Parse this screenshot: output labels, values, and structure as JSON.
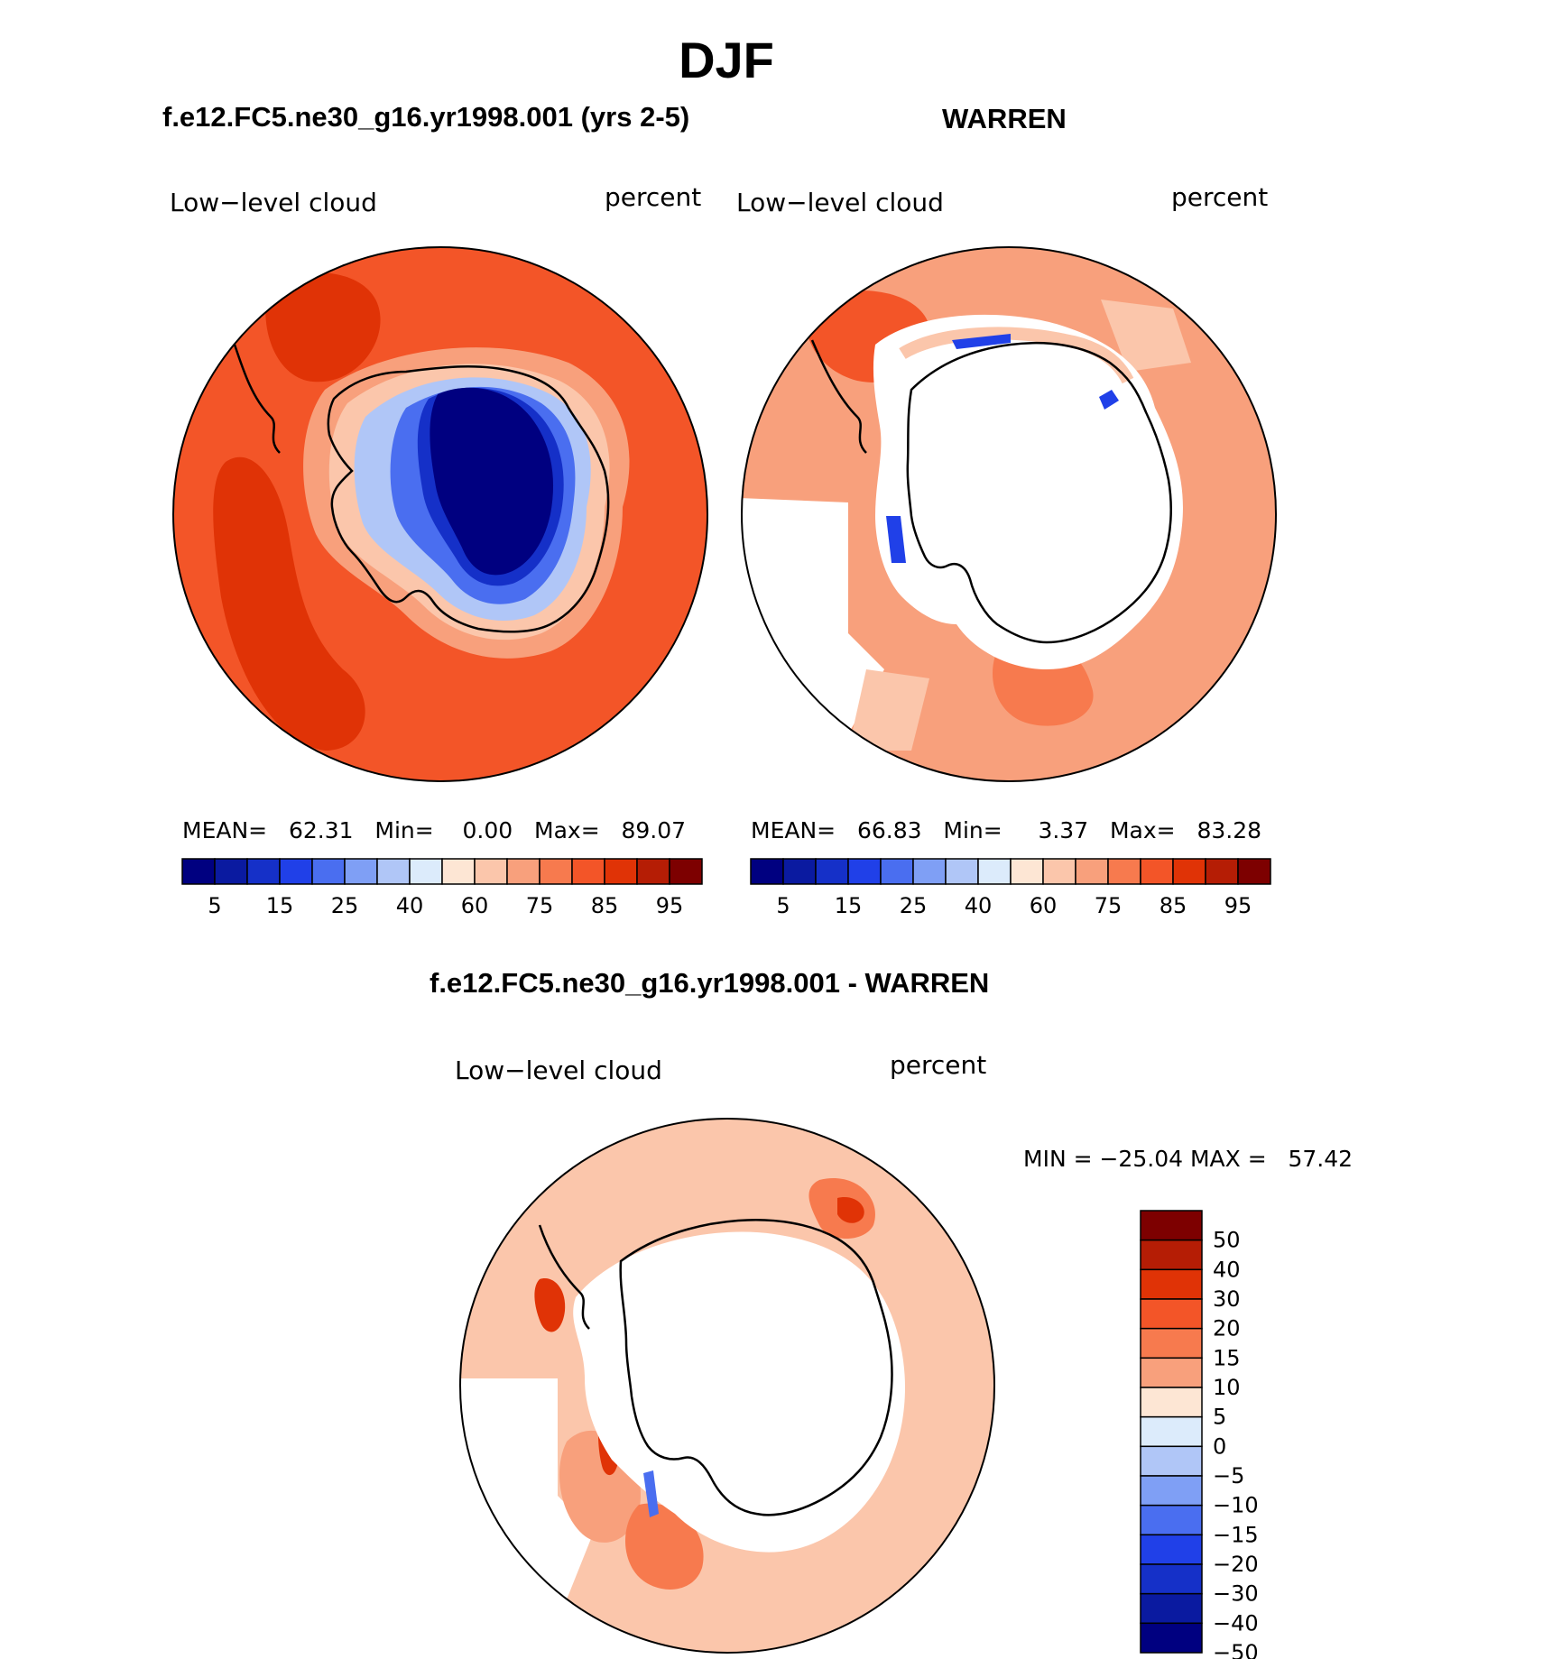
{
  "title": "DJF",
  "panels": [
    {
      "id": "model",
      "header": "f.e12.FC5.ne30_g16.yr1998.001 (yrs 2-5)",
      "left_label": "Low−level cloud",
      "right_label": "percent",
      "stats": {
        "mean_label": "MEAN=",
        "mean": "62.31",
        "min_label": "Min=",
        "min": "0.00",
        "max_label": "Max=",
        "max": "89.07"
      }
    },
    {
      "id": "obs",
      "header": "WARREN",
      "left_label": "Low−level cloud",
      "right_label": "percent",
      "stats": {
        "mean_label": "MEAN=",
        "mean": "66.83",
        "min_label": "Min=",
        "min": "3.37",
        "max_label": "Max=",
        "max": "83.28"
      }
    }
  ],
  "diff_panel": {
    "header": "f.e12.FC5.ne30_g16.yr1998.001 - WARREN",
    "left_label": "Low−level cloud",
    "right_label": "percent",
    "minmax": "MIN = −25.04 MAX =   57.42"
  },
  "colorbar_abs": {
    "colors": [
      "#000080",
      "#0a1aa0",
      "#1530c8",
      "#2040e8",
      "#4a6ef0",
      "#7f9ff5",
      "#b0c6f7",
      "#dcebfb",
      "#fde6d4",
      "#fbc6ab",
      "#f8a07c",
      "#f77a4e",
      "#f35528",
      "#e03306",
      "#b51d05",
      "#7d0000"
    ],
    "ticks": [
      "5",
      "15",
      "25",
      "40",
      "60",
      "75",
      "85",
      "95"
    ]
  },
  "colorbar_diff": {
    "colors": [
      "#7d0000",
      "#b51d05",
      "#e03306",
      "#f35528",
      "#f77a4e",
      "#f8a07c",
      "#fde6d4",
      "#dcebfb",
      "#b0c6f7",
      "#7f9ff5",
      "#4a6ef0",
      "#2040e8",
      "#1530c8",
      "#0a1aa0",
      "#000080"
    ],
    "ticks": [
      "50",
      "40",
      "30",
      "20",
      "15",
      "10",
      "5",
      "0",
      "−5",
      "−10",
      "−15",
      "−20",
      "−30",
      "−40",
      "−50"
    ]
  }
}
